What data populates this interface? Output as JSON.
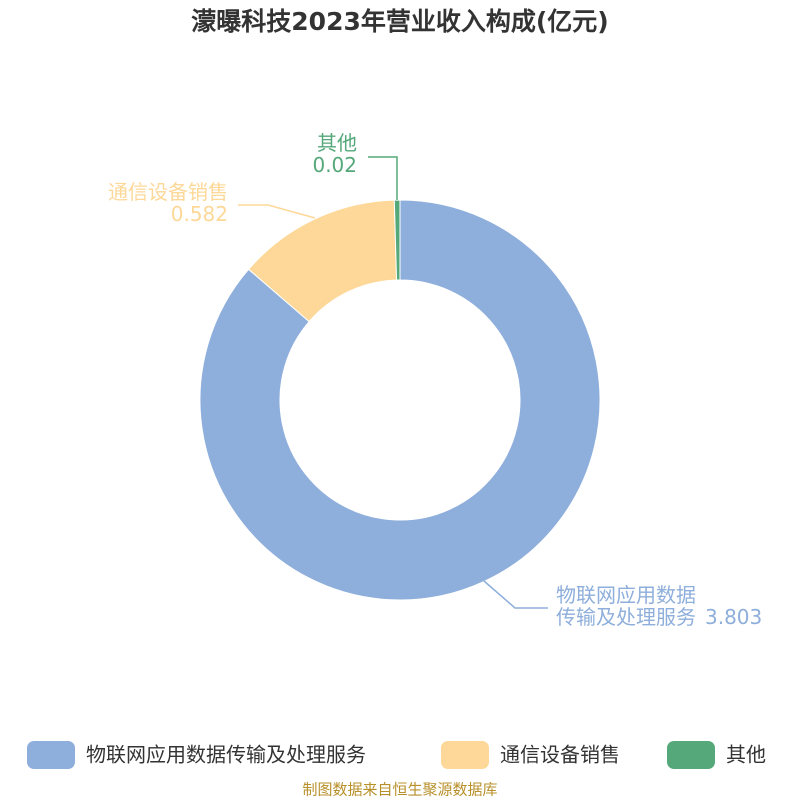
{
  "chart_data": {
    "type": "donut",
    "title": "濛曝科技2023年营业收入构成(亿元)",
    "categories": [
      "物联网应用数据传输及处理服务",
      "通信设备销售",
      "其他"
    ],
    "values": [
      3.803,
      0.582,
      0.02
    ],
    "colors": [
      "#8eaedb",
      "#fdd898",
      "#55a87a"
    ],
    "source": "制图数据来自恒生聚源数据库"
  }
}
